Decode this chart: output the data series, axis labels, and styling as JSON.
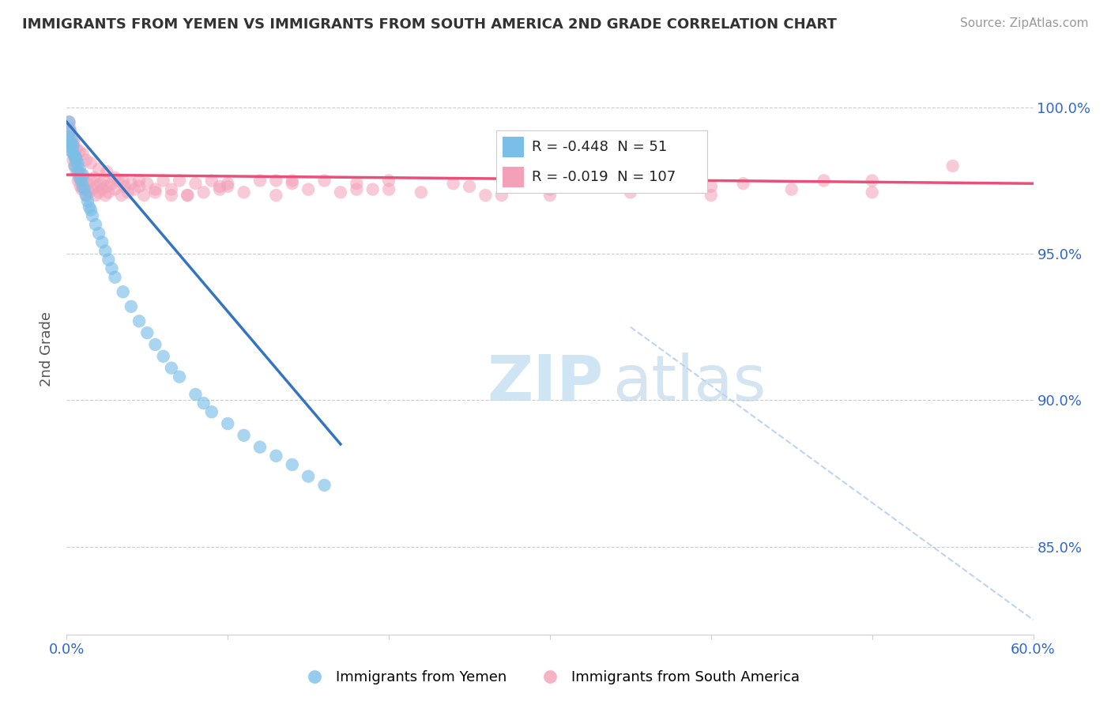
{
  "title": "IMMIGRANTS FROM YEMEN VS IMMIGRANTS FROM SOUTH AMERICA 2ND GRADE CORRELATION CHART",
  "source": "Source: ZipAtlas.com",
  "ylabel": "2nd Grade",
  "xlim": [
    0.0,
    60.0
  ],
  "ylim": [
    82.0,
    101.5
  ],
  "legend_blue_r": "-0.448",
  "legend_blue_n": "51",
  "legend_pink_r": "-0.019",
  "legend_pink_n": "107",
  "blue_color": "#7bbfe8",
  "pink_color": "#f4a0b8",
  "blue_line_color": "#3575c0",
  "pink_line_color": "#e8507a",
  "watermark_zip": "ZIP",
  "watermark_atlas": "atlas",
  "blue_line_x0": 0.0,
  "blue_line_y0": 99.5,
  "blue_line_x1": 17.0,
  "blue_line_y1": 88.5,
  "pink_line_x0": 0.0,
  "pink_line_y0": 97.7,
  "pink_line_x1": 60.0,
  "pink_line_y1": 97.4,
  "dash_line_x0": 35.0,
  "dash_line_y0": 92.5,
  "dash_line_x1": 60.0,
  "dash_line_y1": 82.5,
  "yemen_x": [
    0.1,
    0.15,
    0.2,
    0.25,
    0.3,
    0.35,
    0.4,
    0.45,
    0.5,
    0.55,
    0.6,
    0.7,
    0.7,
    0.8,
    0.8,
    0.9,
    1.0,
    1.0,
    1.1,
    1.2,
    1.3,
    1.4,
    1.5,
    1.6,
    1.8,
    2.0,
    2.2,
    2.4,
    2.6,
    2.8,
    3.0,
    3.5,
    4.0,
    4.5,
    5.0,
    5.5,
    6.0,
    6.5,
    7.0,
    8.0,
    8.5,
    9.0,
    10.0,
    11.0,
    12.0,
    13.0,
    14.0,
    15.0,
    16.0,
    0.3,
    0.5
  ],
  "yemen_y": [
    99.0,
    99.5,
    99.2,
    98.8,
    98.5,
    98.6,
    98.7,
    98.4,
    98.0,
    98.3,
    98.2,
    97.8,
    98.1,
    97.9,
    97.6,
    97.5,
    97.3,
    97.7,
    97.2,
    97.0,
    96.8,
    96.6,
    96.5,
    96.3,
    96.0,
    95.7,
    95.4,
    95.1,
    94.8,
    94.5,
    94.2,
    93.7,
    93.2,
    92.7,
    92.3,
    91.9,
    91.5,
    91.1,
    90.8,
    90.2,
    89.9,
    89.6,
    89.2,
    88.8,
    88.4,
    88.1,
    87.8,
    87.4,
    87.1,
    98.9,
    98.3
  ],
  "south_x": [
    0.1,
    0.15,
    0.2,
    0.25,
    0.3,
    0.35,
    0.4,
    0.45,
    0.5,
    0.55,
    0.6,
    0.65,
    0.7,
    0.75,
    0.8,
    0.85,
    0.9,
    0.95,
    1.0,
    1.1,
    1.2,
    1.3,
    1.4,
    1.5,
    1.6,
    1.7,
    1.8,
    1.9,
    2.0,
    2.1,
    2.2,
    2.3,
    2.4,
    2.5,
    2.6,
    2.8,
    3.0,
    3.2,
    3.4,
    3.6,
    3.8,
    4.0,
    4.2,
    4.5,
    4.8,
    5.0,
    5.5,
    6.0,
    6.5,
    7.0,
    7.5,
    8.0,
    8.5,
    9.0,
    9.5,
    10.0,
    11.0,
    12.0,
    13.0,
    14.0,
    15.0,
    16.0,
    17.0,
    18.0,
    19.0,
    20.0,
    22.0,
    24.0,
    25.0,
    27.0,
    28.0,
    30.0,
    32.0,
    35.0,
    37.0,
    38.0,
    40.0,
    42.0,
    45.0,
    47.0,
    50.0,
    55.0,
    0.2,
    0.6,
    1.0,
    1.5,
    2.5,
    3.5,
    5.5,
    7.5,
    10.0,
    14.0,
    20.0,
    30.0,
    40.0,
    50.0,
    0.4,
    0.8,
    1.2,
    2.0,
    3.0,
    4.5,
    6.5,
    9.5,
    13.0,
    18.0,
    26.0
  ],
  "south_y": [
    99.0,
    99.5,
    99.3,
    98.8,
    98.5,
    98.7,
    98.2,
    98.9,
    98.0,
    98.3,
    97.8,
    98.0,
    97.5,
    97.8,
    97.6,
    97.3,
    97.7,
    97.2,
    97.5,
    97.3,
    97.0,
    97.4,
    97.1,
    97.5,
    97.2,
    97.6,
    97.0,
    97.3,
    97.1,
    97.4,
    97.2,
    97.5,
    97.0,
    97.3,
    97.1,
    97.4,
    97.2,
    97.5,
    97.0,
    97.3,
    97.1,
    97.4,
    97.2,
    97.5,
    97.0,
    97.4,
    97.1,
    97.5,
    97.2,
    97.5,
    97.0,
    97.4,
    97.1,
    97.5,
    97.2,
    97.4,
    97.1,
    97.5,
    97.0,
    97.4,
    97.2,
    97.5,
    97.1,
    97.4,
    97.2,
    97.5,
    97.1,
    97.4,
    97.3,
    97.0,
    97.5,
    97.2,
    97.4,
    97.1,
    97.5,
    97.3,
    97.0,
    97.4,
    97.2,
    97.5,
    97.1,
    98.0,
    99.2,
    98.6,
    98.4,
    98.1,
    97.8,
    97.5,
    97.2,
    97.0,
    97.3,
    97.5,
    97.2,
    97.0,
    97.3,
    97.5,
    98.8,
    98.5,
    98.2,
    97.9,
    97.6,
    97.3,
    97.0,
    97.3,
    97.5,
    97.2,
    97.0
  ]
}
